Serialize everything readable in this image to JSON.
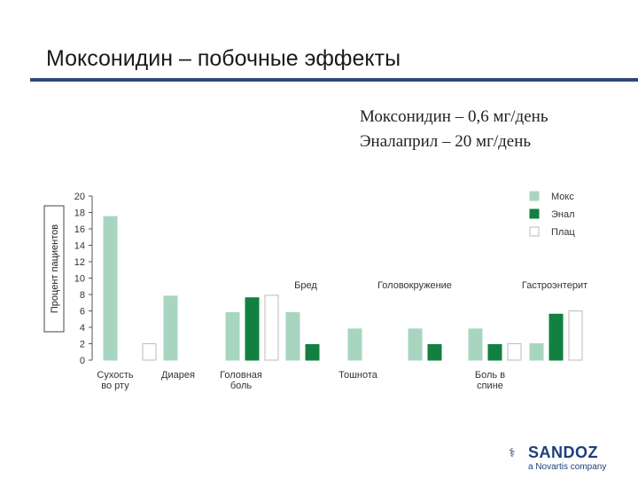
{
  "title": "Моксонидин – побочные эффекты",
  "doses": [
    "Моксонидин – 0,6 мг/день",
    "Эналаприл – 20 мг/день"
  ],
  "brand": {
    "name": "SANDOZ",
    "tagline": "a Novartis company",
    "color": "#1d3f7a"
  },
  "chart_data": {
    "type": "bar",
    "ylabel": "Процент пациентов",
    "ylim": [
      0,
      20
    ],
    "yticks": [
      0,
      2,
      4,
      6,
      8,
      10,
      12,
      14,
      16,
      18,
      20
    ],
    "grid": false,
    "legend_position": "top-right",
    "categories": [
      "Сухость во рту",
      "Диарея",
      "Головная боль",
      "Бред",
      "Тошнота",
      "Головокружение",
      "Боль в спине",
      "Гастроэнтерит"
    ],
    "label_rows": [
      "bottom",
      "bottom",
      "bottom",
      "top",
      "bottom",
      "top",
      "bottom",
      "top"
    ],
    "series": [
      {
        "name": "Мокс",
        "color": "#a8d5c0",
        "values": [
          17.5,
          7.8,
          5.8,
          5.8,
          3.8,
          3.8,
          3.8,
          2.0
        ]
      },
      {
        "name": "Энал",
        "color": "#128040",
        "values": [
          null,
          null,
          7.6,
          1.9,
          null,
          1.9,
          1.9,
          5.6
        ]
      },
      {
        "name": "Плац",
        "color": "#ffffff",
        "values": [
          2.0,
          null,
          7.9,
          null,
          null,
          null,
          2.0,
          6.0
        ]
      }
    ]
  }
}
